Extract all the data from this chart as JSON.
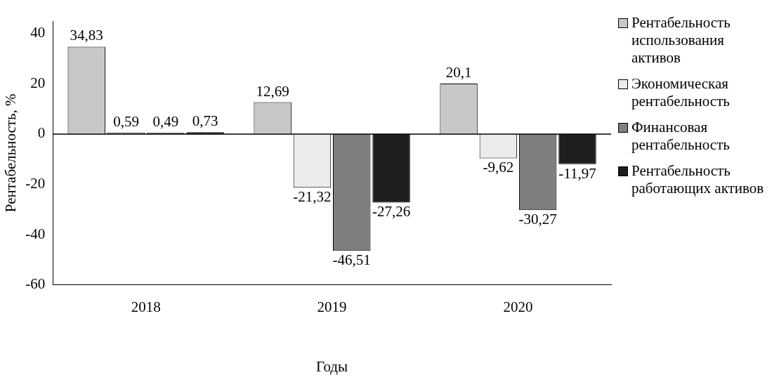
{
  "chart_data": {
    "type": "bar",
    "xlabel": "Годы",
    "ylabel": "Рентабельность, %",
    "categories": [
      "2018",
      "2019",
      "2020"
    ],
    "series": [
      {
        "name": "Рентабельность использования активов",
        "color": "#c8c8c8",
        "values": [
          34.83,
          12.69,
          20.1
        ],
        "value_labels": [
          "34,83",
          "12,69",
          "20,1"
        ]
      },
      {
        "name": "Экономическая рентабельность",
        "color": "#ececec",
        "values": [
          0.59,
          -21.32,
          -9.62
        ],
        "value_labels": [
          "0,59",
          "-21,32",
          "-9,62"
        ]
      },
      {
        "name": "Финансовая рентабельность",
        "color": "#7f7f7f",
        "values": [
          0.49,
          -46.51,
          -30.27
        ],
        "value_labels": [
          "0,49",
          "-46,51",
          "-30,27"
        ]
      },
      {
        "name": "Рентабельность работающих активов",
        "color": "#1e1e1e",
        "values": [
          0.73,
          -27.26,
          -11.97
        ],
        "value_labels": [
          "0,73",
          "-27,26",
          "-11,97"
        ]
      }
    ],
    "ylim": [
      -60,
      45
    ],
    "yticks": [
      -60,
      -40,
      -20,
      0,
      20,
      40
    ],
    "grid": false,
    "legend": "right",
    "ref_lines": [
      {
        "axis": "y",
        "value": 0
      }
    ]
  }
}
